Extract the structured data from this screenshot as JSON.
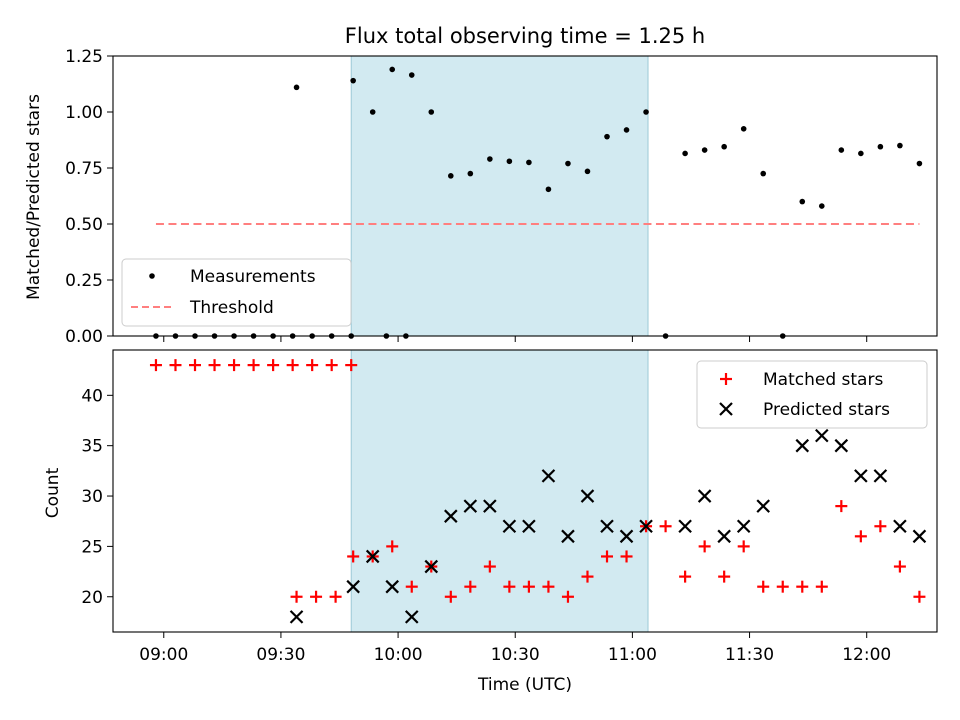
{
  "chart_data": [
    {
      "type": "scatter",
      "title": "Flux total observing time = 1.25 h",
      "xlabel": "",
      "ylabel": "Matched/Predicted stars",
      "xlim": [
        "08:47",
        "12:18"
      ],
      "ylim": [
        0,
        1.25
      ],
      "yticks": [
        "0.00",
        "0.25",
        "0.50",
        "0.75",
        "1.00",
        "1.25"
      ],
      "legend_position": "lower-left",
      "shaded_region": {
        "start": "09:48",
        "end": "11:04",
        "color": "#add8e6"
      },
      "series": [
        {
          "name": "Measurements",
          "marker": "dot",
          "color": "#000000",
          "points": [
            [
              "08:58:00",
              0
            ],
            [
              "09:03:00",
              0
            ],
            [
              "09:08:00",
              0
            ],
            [
              "09:13:00",
              0
            ],
            [
              "09:18:00",
              0
            ],
            [
              "09:23:00",
              0
            ],
            [
              "09:28:00",
              0
            ],
            [
              "09:33:00",
              0
            ],
            [
              "09:38:00",
              0
            ],
            [
              "09:43:00",
              0
            ],
            [
              "09:48:00",
              0
            ],
            [
              "09:57:00",
              0
            ],
            [
              "10:02:00",
              0
            ],
            [
              "09:34:00",
              1.11
            ],
            [
              "09:48:30",
              1.14
            ],
            [
              "09:53:30",
              1.0
            ],
            [
              "09:58:30",
              1.19
            ],
            [
              "10:03:30",
              1.165
            ],
            [
              "10:08:30",
              1.0
            ],
            [
              "10:13:30",
              0.715
            ],
            [
              "10:18:30",
              0.725
            ],
            [
              "10:23:30",
              0.79
            ],
            [
              "10:28:30",
              0.78
            ],
            [
              "10:33:30",
              0.775
            ],
            [
              "10:38:30",
              0.655
            ],
            [
              "10:43:30",
              0.77
            ],
            [
              "10:48:30",
              0.735
            ],
            [
              "10:53:30",
              0.89
            ],
            [
              "10:58:30",
              0.92
            ],
            [
              "11:03:30",
              1.0
            ],
            [
              "11:08:30",
              0
            ],
            [
              "11:38:30",
              0
            ],
            [
              "11:13:30",
              0.815
            ],
            [
              "11:18:30",
              0.83
            ],
            [
              "11:23:30",
              0.845
            ],
            [
              "11:28:30",
              0.925
            ],
            [
              "11:33:30",
              0.725
            ],
            [
              "11:43:30",
              0.6
            ],
            [
              "11:48:30",
              0.58
            ],
            [
              "11:53:30",
              0.83
            ],
            [
              "11:58:30",
              0.815
            ],
            [
              "12:03:30",
              0.845
            ],
            [
              "12:08:30",
              0.85
            ],
            [
              "12:13:30",
              0.77
            ]
          ]
        },
        {
          "name": "Threshold",
          "marker": "dashed-line",
          "color": "#ff7f7f",
          "points": [
            [
              "08:58:00",
              0.5
            ],
            [
              "12:13:30",
              0.5
            ]
          ]
        }
      ]
    },
    {
      "type": "scatter",
      "title": "",
      "xlabel": "Time (UTC)",
      "ylabel": "Count",
      "xlim": [
        "08:47",
        "12:18"
      ],
      "ylim": [
        16.5,
        44.5
      ],
      "xticks": [
        "09:00",
        "09:30",
        "10:00",
        "10:30",
        "11:00",
        "11:30",
        "12:00"
      ],
      "yticks": [
        "20",
        "25",
        "30",
        "35",
        "40"
      ],
      "legend_position": "top-right",
      "shaded_region": {
        "start": "09:48",
        "end": "11:04",
        "color": "#add8e6"
      },
      "series": [
        {
          "name": "Matched stars",
          "marker": "plus",
          "color": "#ff0000",
          "points": [
            [
              "08:58:00",
              43
            ],
            [
              "09:03:00",
              43
            ],
            [
              "09:08:00",
              43
            ],
            [
              "09:13:00",
              43
            ],
            [
              "09:18:00",
              43
            ],
            [
              "09:23:00",
              43
            ],
            [
              "09:28:00",
              43
            ],
            [
              "09:33:00",
              43
            ],
            [
              "09:38:00",
              43
            ],
            [
              "09:43:00",
              43
            ],
            [
              "09:48:00",
              43
            ],
            [
              "09:34:00",
              20
            ],
            [
              "09:39:00",
              20
            ],
            [
              "09:44:00",
              20
            ],
            [
              "09:48:30",
              24
            ],
            [
              "09:53:30",
              24
            ],
            [
              "09:58:30",
              25
            ],
            [
              "10:03:30",
              21
            ],
            [
              "10:08:30",
              23
            ],
            [
              "10:13:30",
              20
            ],
            [
              "10:18:30",
              21
            ],
            [
              "10:23:30",
              23
            ],
            [
              "10:28:30",
              21
            ],
            [
              "10:33:30",
              21
            ],
            [
              "10:38:30",
              21
            ],
            [
              "10:43:30",
              20
            ],
            [
              "10:48:30",
              22
            ],
            [
              "10:53:30",
              24
            ],
            [
              "10:58:30",
              24
            ],
            [
              "11:03:30",
              27
            ],
            [
              "11:08:30",
              27
            ],
            [
              "11:13:30",
              22
            ],
            [
              "11:18:30",
              25
            ],
            [
              "11:23:30",
              22
            ],
            [
              "11:28:30",
              25
            ],
            [
              "11:33:30",
              21
            ],
            [
              "11:38:30",
              21
            ],
            [
              "11:43:30",
              21
            ],
            [
              "11:48:30",
              21
            ],
            [
              "11:53:30",
              29
            ],
            [
              "11:58:30",
              26
            ],
            [
              "12:03:30",
              27
            ],
            [
              "12:08:30",
              23
            ],
            [
              "12:13:30",
              20
            ]
          ]
        },
        {
          "name": "Predicted stars",
          "marker": "x",
          "color": "#000000",
          "points": [
            [
              "09:34:00",
              18
            ],
            [
              "09:48:30",
              21
            ],
            [
              "09:53:30",
              24
            ],
            [
              "09:58:30",
              21
            ],
            [
              "10:03:30",
              18
            ],
            [
              "10:08:30",
              23
            ],
            [
              "10:13:30",
              28
            ],
            [
              "10:18:30",
              29
            ],
            [
              "10:23:30",
              29
            ],
            [
              "10:28:30",
              27
            ],
            [
              "10:33:30",
              27
            ],
            [
              "10:38:30",
              32
            ],
            [
              "10:43:30",
              26
            ],
            [
              "10:48:30",
              30
            ],
            [
              "10:53:30",
              27
            ],
            [
              "10:58:30",
              26
            ],
            [
              "11:03:30",
              27
            ],
            [
              "11:13:30",
              27
            ],
            [
              "11:18:30",
              30
            ],
            [
              "11:23:30",
              26
            ],
            [
              "11:28:30",
              27
            ],
            [
              "11:33:30",
              29
            ],
            [
              "11:43:30",
              35
            ],
            [
              "11:48:30",
              36
            ],
            [
              "11:53:30",
              35
            ],
            [
              "11:58:30",
              32
            ],
            [
              "12:03:30",
              32
            ],
            [
              "12:08:30",
              27
            ],
            [
              "12:13:30",
              26
            ]
          ]
        }
      ]
    }
  ]
}
